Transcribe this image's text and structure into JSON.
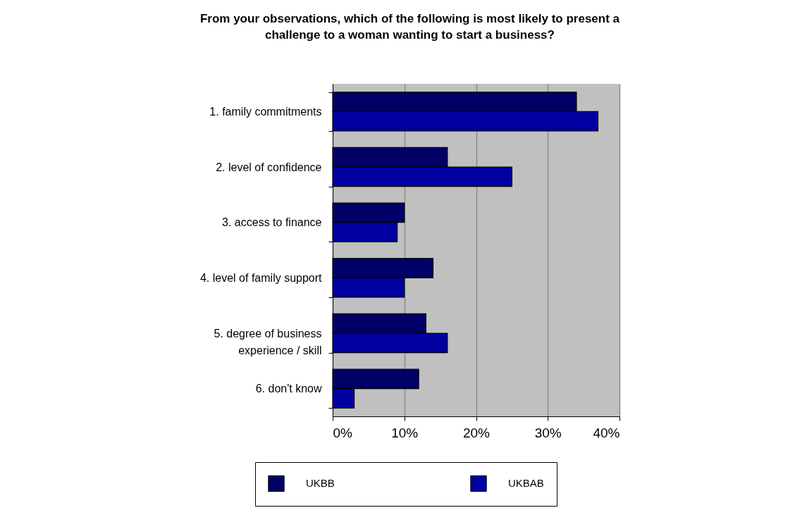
{
  "chart_data": {
    "type": "bar",
    "orientation": "horizontal",
    "title": "From your observations, which of the following is most likely to present a challenge to a woman wanting to start a business?",
    "categories": [
      "1. family commitments",
      "2. level of confidence",
      "3. access to finance",
      "4. level of family support",
      "5. degree of business experience / skill",
      "6. don't know"
    ],
    "series": [
      {
        "name": "UKBB",
        "color": "#000066",
        "values": [
          34,
          16,
          10,
          14,
          13,
          12
        ]
      },
      {
        "name": "UKBAB",
        "color": "#0000a0",
        "values": [
          37,
          25,
          9,
          10,
          16,
          3
        ]
      }
    ],
    "xlim": [
      0,
      40
    ],
    "xticks": [
      {
        "value": 0,
        "label": "0%"
      },
      {
        "value": 10,
        "label": "10%"
      },
      {
        "value": 20,
        "label": "20%"
      },
      {
        "value": 30,
        "label": "30%"
      },
      {
        "value": 40,
        "label": "40%"
      }
    ],
    "grid": "x",
    "legend": "bottom"
  }
}
